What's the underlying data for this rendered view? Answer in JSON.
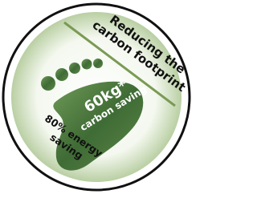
{
  "badge": {
    "headline": [
      "Reducing the",
      "carbon footprint"
    ],
    "footprint": {
      "amount": "60kg*",
      "label": "carbon saving"
    },
    "energy": [
      "80% energy",
      "saving"
    ]
  }
}
